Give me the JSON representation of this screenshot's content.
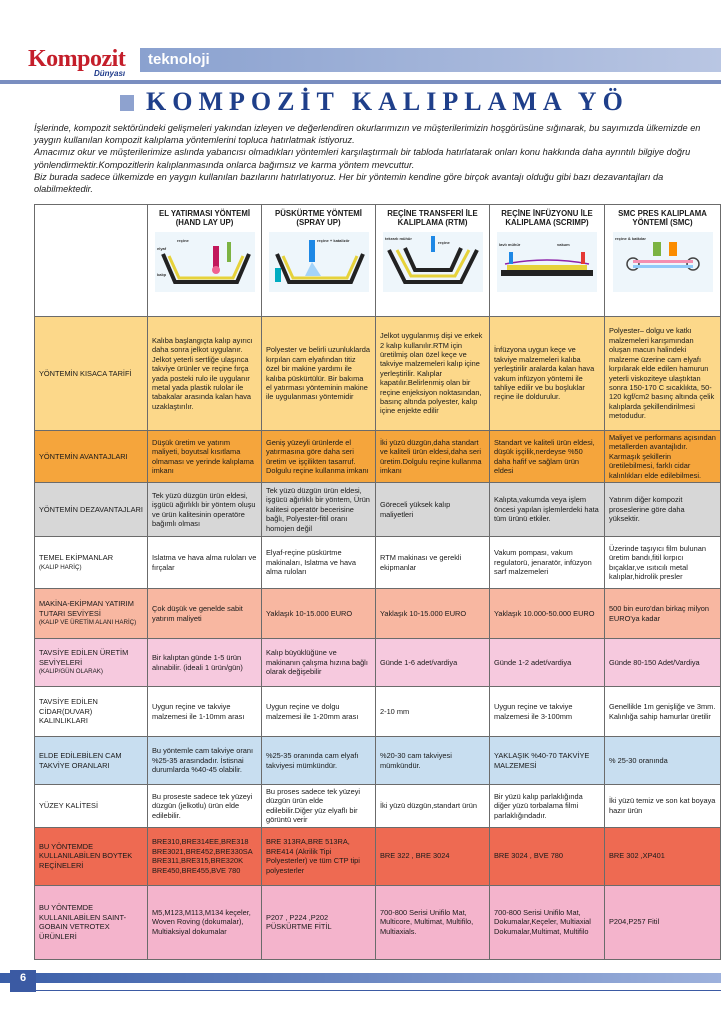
{
  "header": {
    "logo_main": "Kompozit",
    "logo_sub": "Dünyası",
    "section": "teknoloji",
    "title": "KOMPOZİT KALIPLAMA YÖ"
  },
  "intro": {
    "p1": "İşlerinde,  kompozit sektöründeki gelişmeleri yakından izleyen ve değerlendiren okurlarımızın ve müşterilerimizin hoşgörüsüne sığınarak, bu sayımızda ülkemizde en yaygın kullanılan kompozit kalıplama yöntemlerini topluca hatırlatmak istiyoruz.",
    "p2": "Amacımız okur ve müşterilerimize aslında yabancısı olmadıkları yöntemleri karşılaştırmalı bir tabloda hatırlatarak onları konu hakkında daha ayrıntılı bilgiye doğru yönlendirmektir.Kompozitlerin kalıplanmasında onlarca bağımsız ve karma yöntem mevcuttur.",
    "p3": "Biz burada sadece ülkemizde en yaygın kullanılan bazılarını hatırlatıyoruz. Her bir yöntemin kendine göre birçok avantajı olduğu gibi bazı dezavantajları da olabilmektedir."
  },
  "columns": [
    "EL YATIRMASI YÖNTEMİ (HAND LAY UP)",
    "PÜSKÜRTME YÖNTEMİ (SPRAY UP)",
    "REÇİNE TRANSFERİ İLE KALIPLAMA (RTM)",
    "REÇİNE İNFÜZYONU İLE KALIPLAMA (SCRIMP)",
    "SMC PRES KALIPLAMA YÖNTEMİ (SMC)"
  ],
  "illus_labels": {
    "c1": [
      "elyaf",
      "reçine",
      "katkılı fırça",
      "alma rulosu",
      "kalıp"
    ],
    "c2": [
      "reçine + katalizör",
      "fitil",
      "kalıp"
    ],
    "c3": [
      "tekrarlı mühürlenir",
      "reçine"
    ],
    "c4": [
      "lavlı mühür",
      "reçine",
      "vakum"
    ],
    "c5": [
      "reçine & katkılar"
    ]
  },
  "rows": [
    {
      "label": "YÖNTEMİN KISACA TARİFİ",
      "cells": [
        "Kalıba başlangıçta kalıp ayırıcı daha sonra jelkot uygulanır. Jelkot yeterli sertliğe ulaşınca takviye ürünler ve reçine fırça yada posteki rulo ile uygulanır metal yada plastik rulolar ile tabakalar arasında kalan hava uzaklaştırılır.",
        "Polyester ve belirli uzunluklarda kırpılan cam elyafından titiz özel bir makine yardımı ile kalıba püskürtülür. Bir bakıma el yatırması yönteminin makine ile uygulanması yöntemidir",
        "Jelkot uygulanmış dişi ve erkek 2 kalıp kullanılır.RTM için üretilmiş olan özel keçe ve takviye malzemeleri kalıp içine yerleştirilir. Kalıplar kapatılır.Belirlenmiş olan bir reçine enjeksiyon noktasından, basınç altında polyester, kalıp içine enjekte edilir",
        "İnfüzyona uygun keçe ve takviye malzemeleri kalıba yerleştirilir aralarda kalan hava vakum infüzyon yöntemi ile tahliye edilir ve bu boşluklar reçine ile doldurulur.",
        "Polyester– dolgu ve katkı malzemeleri karışımından oluşan macun halindeki malzeme üzerine cam elyafı kırpılarak elde edilen hamurun yeterli viskoziteye ulaştıktan sonra 150-170 C sıcaklıkta, 50-120 kgf/cm2 basınç altında çelik kalıplarda şekillendirilmesi metodudur."
      ]
    },
    {
      "label": "YÖNTEMİN AVANTAJLARI",
      "cells": [
        "Düşük üretim ve yatırım maliyeti, boyutsal kısıtlama olmaması ve yerinde kalıplama imkanı",
        "Geniş yüzeyli ürünlerde el yatırmasına göre daha seri üretim ve işçilikten tasarruf. Dolgulu reçine kullanma imkanı",
        "İki yüzü düzgün,daha standart ve kaliteli ürün eldesi,daha seri üretim.Dolgulu reçine kullanma imkanı",
        "Standart ve kaliteli ürün eldesi, düşük işçilik,nerdeyse %50 daha hafif ve sağlam ürün eldesi",
        "Maliyet ve performans açısından metallerden avantajlıdır. Karmaşık şekillerin üretilebilmesi, farklı cidar kalınlıkları elde edilebilmesi."
      ]
    },
    {
      "label": "YÖNTEMİN DEZAVANTAJLARI",
      "cells": [
        "Tek yüzü düzgün ürün eldesi, işgücü ağırlıklı bir yöntem oluşu ve ürün kalitesinin operatöre bağımlı olması",
        "Tek yüzü düzgün ürün eldesi, işgücü ağırlıklı bir yöntem, Ürün kalitesi operatör becerisine bağlı, Polyester-fitil oranı homojen değil",
        "Göreceli yüksek kalıp maliyetleri",
        "Kalıpta,vakumda veya işlem öncesi yapılan işlemlerdeki hata tüm ürünü etkiler.",
        "Yatırım diğer kompozit proseslerine göre daha yüksektir."
      ]
    },
    {
      "label": "TEMEL EKİPMANLAR",
      "sublabel": "(KALIP HARİÇ)",
      "cells": [
        "Islatma ve hava alma ruloları ve fırçalar",
        "Elyaf-reçine püskürtme makinaları, Islatma ve hava alma ruloları",
        "RTM makinası ve gerekli ekipmanlar",
        "Vakum pompası, vakum regulatorü, jenaratör, infüzyon sarf malzemeleri",
        "Üzerinde taşıyıcı film bulunan üretim bandı,fitil kırpıcı bıçaklar,ve ısıtıcılı metal kalıplar,hidrolik presler"
      ]
    },
    {
      "label": "MAKİNA-EKİPMAN YATIRIM TUTARI SEVİYESİ",
      "sublabel": "(KALIP VE ÜRETİM ALANI HARİÇ)",
      "cells": [
        "Çok düşük ve genelde sabit yatırım maliyeti",
        "Yaklaşık 10-15.000 EURO",
        "Yaklaşık 10-15.000 EURO",
        "Yaklaşık 10.000-50.000 EURO",
        "500 bin euro'dan birkaç milyon EURO'ya kadar"
      ]
    },
    {
      "label": "TAVSİYE EDİLEN ÜRETİM SEVİYELERİ",
      "sublabel": "(KALIP/GÜN OLARAK)",
      "cells": [
        "Bir kalıptan günde 1-5 ürün alınabilir. (ideali 1 ürün/gün)",
        "Kalıp büyüklüğüne ve makinanın çalışma hızına bağlı olarak değişebilir",
        "Günde 1-6 adet/vardiya",
        "Günde 1-2 adet/vardiya",
        "Günde 80-150 Adet/Vardiya"
      ]
    },
    {
      "label": "TAVSİYE EDİLEN CİDAR(DUVAR) KALINLIKLARI",
      "cells": [
        "Uygun reçine ve takviye malzemesi ile 1-10mm arası",
        "Uygun reçine ve dolgu malzemesi ile 1-20mm arası",
        "2-10 mm",
        "Uygun reçine ve takviye malzemesi ile 3-100mm",
        "Genellikle 1m genişliğe ve 3mm. Kalınlığa sahip hamurlar üretilir"
      ]
    },
    {
      "label": "ELDE EDİLEBİLEN CAM TAKVİYE ORANLARI",
      "cells": [
        "Bu yöntemle cam takviye oranı %25-35 arasındadır. İstisnai durumlarda %40-45 olabilir.",
        "%25-35 oranında cam elyafı takviyesi mümkündür.",
        "%20-30 cam takviyesi mümkündür.",
        "YAKLAŞIK %40-70 TAKVİYE MALZEMESİ",
        "% 25-30 oranında"
      ]
    },
    {
      "label": "YÜZEY KALİTESİ",
      "cells": [
        "Bu proseste sadece tek yüzeyi düzgün (jelkotlu) ürün elde edilebilir.",
        "Bu proses sadece tek yüzeyi düzgün ürün elde edilebilir.Diğer yüz elyaflı bir görüntü verir",
        "İki yüzü düzgün,standart ürün",
        "Bir yüzü kalıp parlaklığında diğer yüzü torbalama filmi parlaklığındadır.",
        "İki yüzü temiz ve son kat boyaya hazır ürün"
      ]
    },
    {
      "label": "BU YÖNTEMDE KULLANILABİLEN BOYTEK REÇİNELERİ",
      "cells": [
        "BRE310,BRE314EE,BRE318 BRE3021,BRE452,BRE330SA BRE311,BRE315,BRE320K BRE450,BRE455,BVE 780",
        "BRE 313RA,BRE 513RA, BRE414 (Akrilik Tipi Polyesterler) ve tüm CTP tipi polyesterler",
        "BRE 322 , BRE 3024",
        "BRE 3024 , BVE 780",
        "BRE 302 ,XP401"
      ]
    },
    {
      "label": "BU YÖNTEMDE KULLANILABİLEN SAINT-GOBAIN VETROTEX ÜRÜNLERİ",
      "cells": [
        "M5,M123,M113,M134 keçeler, Woven Roving (dokumalar), Multiaksiyal dokumalar",
        "P207 , P224 ,P202 PÜSKÜRTME FİTİL",
        "700-800 Serisi Unifilo Mat, Multicore, Multimat, Multifilo, Multiaxials.",
        "700-800 Serisi Unifilo Mat, Dokumalar,Keçeler, Multiaxial Dokumalar,Multimat, Multifilo",
        "P204,P257 Fitil"
      ]
    }
  ],
  "footer": {
    "page": "6"
  }
}
